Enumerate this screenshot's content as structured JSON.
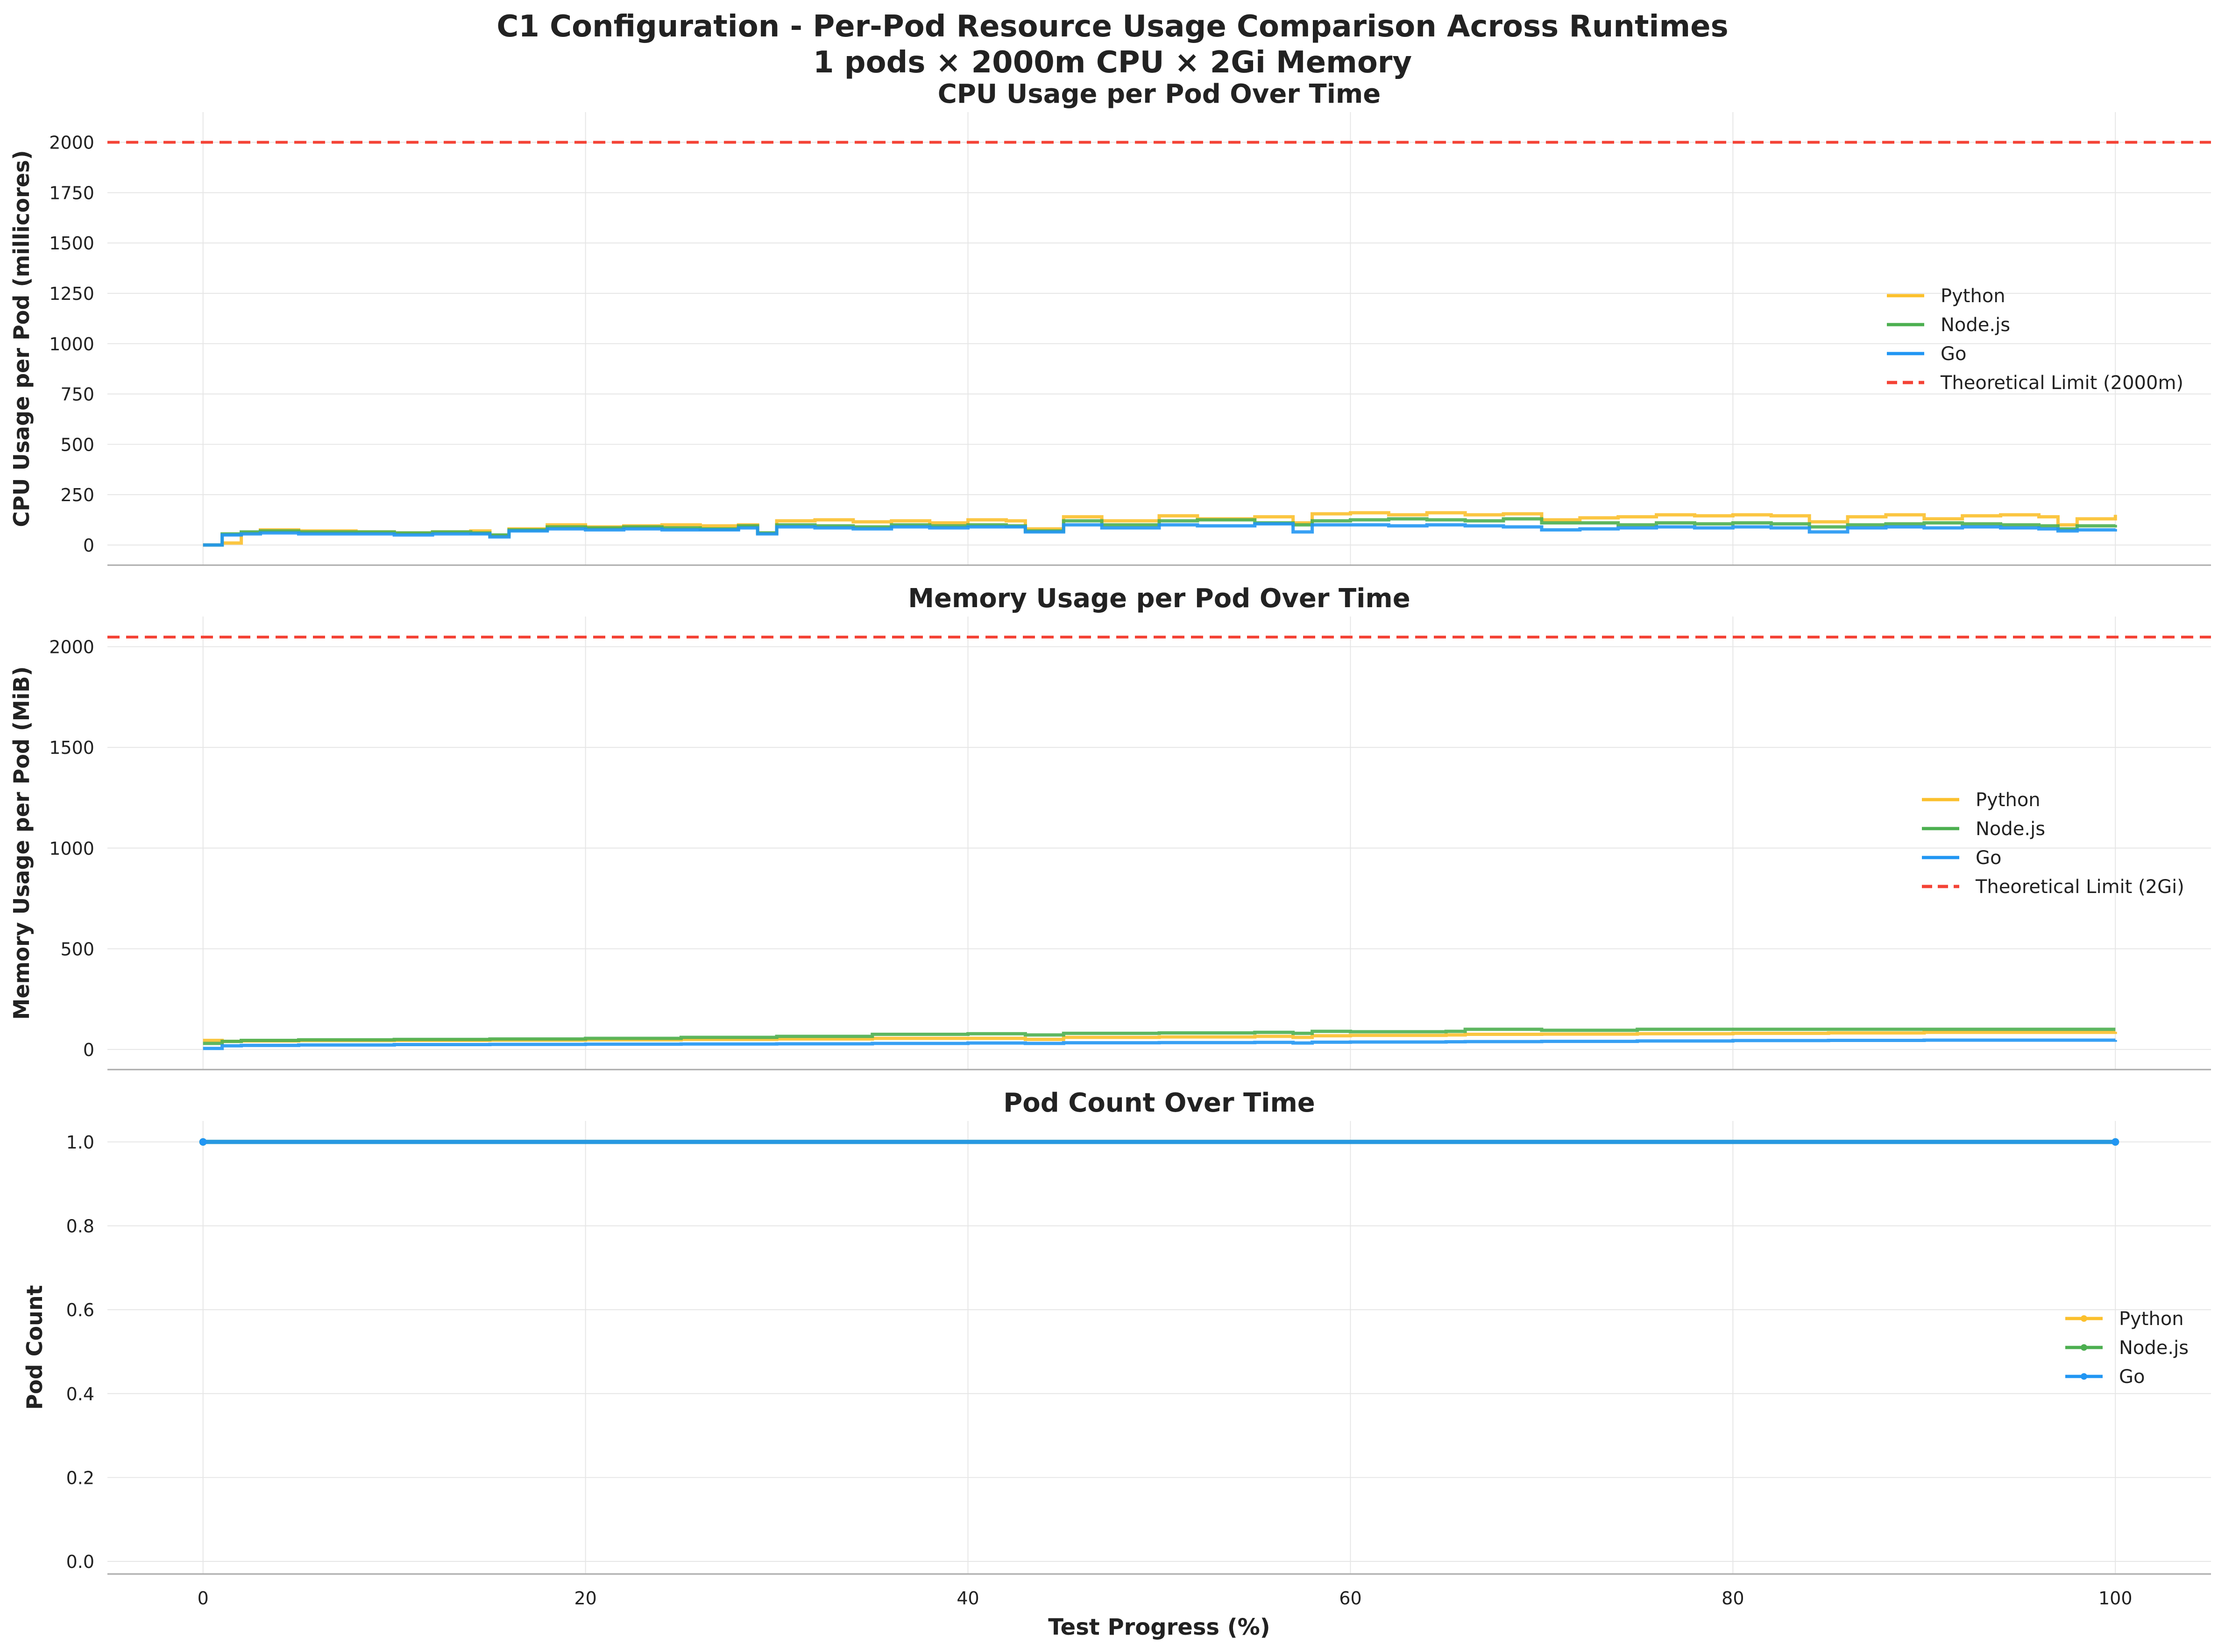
{
  "figure": {
    "title_line1": "C1 Configuration - Per-Pod Resource Usage Comparison Across Runtimes",
    "title_line2": "1 pods × 2000m CPU × 2Gi Memory",
    "xlabel": "Test Progress (%)"
  },
  "colors": {
    "Python": "#FBC02D",
    "Node.js": "#4CAF50",
    "Go": "#2196F3",
    "limit": "#F44336",
    "grid": "#E6E6E6",
    "axis": "#AAAAAA"
  },
  "chart_data": [
    {
      "type": "line",
      "id": "cpu",
      "title": "CPU Usage per Pod Over Time",
      "ylabel": "CPU Usage per Pod (millicores)",
      "xlim": [
        -5,
        105
      ],
      "ylim": [
        -100,
        2150
      ],
      "xticks": [
        0,
        20,
        40,
        60,
        80,
        100
      ],
      "yticks": [
        0,
        250,
        500,
        750,
        1000,
        1250,
        1500,
        1750,
        2000
      ],
      "grid": true,
      "legend": "right",
      "reference_line": {
        "y": 2000,
        "label": "Theoretical Limit (2000m)"
      },
      "x": [
        0,
        1,
        2,
        3,
        5,
        8,
        10,
        12,
        14,
        15,
        16,
        18,
        20,
        22,
        24,
        26,
        28,
        29,
        30,
        32,
        34,
        36,
        38,
        40,
        42,
        43,
        45,
        47,
        50,
        52,
        55,
        57,
        58,
        60,
        62,
        64,
        66,
        68,
        70,
        72,
        74,
        76,
        78,
        80,
        82,
        84,
        86,
        88,
        90,
        92,
        94,
        96,
        97,
        98,
        100
      ],
      "series": [
        {
          "name": "Python",
          "values": [
            0,
            10,
            60,
            75,
            70,
            65,
            60,
            65,
            70,
            45,
            80,
            100,
            90,
            95,
            100,
            95,
            100,
            60,
            120,
            125,
            115,
            120,
            110,
            125,
            120,
            80,
            140,
            120,
            145,
            130,
            140,
            110,
            155,
            160,
            150,
            160,
            150,
            155,
            125,
            135,
            140,
            150,
            145,
            150,
            145,
            115,
            140,
            150,
            130,
            145,
            150,
            140,
            100,
            130,
            150
          ]
        },
        {
          "name": "Node.js",
          "values": [
            0,
            55,
            65,
            70,
            65,
            65,
            60,
            65,
            60,
            50,
            75,
            90,
            85,
            90,
            85,
            80,
            95,
            60,
            100,
            95,
            90,
            100,
            95,
            100,
            95,
            70,
            120,
            100,
            120,
            125,
            110,
            100,
            120,
            125,
            130,
            125,
            120,
            130,
            110,
            110,
            100,
            110,
            105,
            110,
            105,
            90,
            100,
            105,
            110,
            105,
            100,
            95,
            80,
            95,
            100
          ]
        },
        {
          "name": "Go",
          "values": [
            0,
            50,
            55,
            60,
            55,
            55,
            50,
            55,
            55,
            40,
            70,
            80,
            75,
            80,
            75,
            75,
            85,
            55,
            90,
            85,
            80,
            90,
            85,
            90,
            90,
            65,
            100,
            85,
            100,
            95,
            105,
            65,
            100,
            100,
            95,
            100,
            95,
            90,
            75,
            80,
            85,
            90,
            85,
            90,
            85,
            65,
            85,
            90,
            85,
            90,
            85,
            80,
            70,
            75,
            80
          ]
        }
      ]
    },
    {
      "type": "line",
      "id": "memory",
      "title": "Memory Usage per Pod Over Time",
      "ylabel": "Memory Usage per Pod (MiB)",
      "xlim": [
        -5,
        105
      ],
      "ylim": [
        -100,
        2150
      ],
      "xticks": [
        0,
        20,
        40,
        60,
        80,
        100
      ],
      "yticks": [
        0,
        500,
        1000,
        1500,
        2000
      ],
      "grid": true,
      "legend": "right",
      "reference_line": {
        "y": 2048,
        "label": "Theoretical Limit (2Gi)"
      },
      "x": [
        0,
        1,
        2,
        5,
        10,
        15,
        20,
        25,
        30,
        35,
        40,
        43,
        45,
        50,
        55,
        57,
        58,
        60,
        65,
        66,
        70,
        75,
        80,
        85,
        90,
        95,
        100
      ],
      "series": [
        {
          "name": "Python",
          "values": [
            45,
            40,
            42,
            44,
            45,
            46,
            48,
            50,
            52,
            55,
            55,
            50,
            60,
            62,
            65,
            60,
            68,
            70,
            72,
            75,
            76,
            78,
            80,
            82,
            85,
            85,
            88
          ]
        },
        {
          "name": "Node.js",
          "values": [
            30,
            40,
            45,
            48,
            50,
            52,
            55,
            60,
            65,
            75,
            78,
            72,
            80,
            82,
            85,
            80,
            90,
            88,
            90,
            100,
            95,
            100,
            100,
            100,
            100,
            100,
            100
          ]
        },
        {
          "name": "Go",
          "values": [
            5,
            18,
            20,
            22,
            24,
            25,
            26,
            27,
            28,
            30,
            32,
            30,
            33,
            34,
            35,
            32,
            36,
            37,
            38,
            39,
            40,
            42,
            44,
            45,
            46,
            46,
            47
          ]
        }
      ]
    },
    {
      "type": "line",
      "id": "pods",
      "title": "Pod Count Over Time",
      "ylabel": "Pod Count",
      "xlim": [
        -5,
        105
      ],
      "ylim": [
        -0.03,
        1.05
      ],
      "xticks": [
        0,
        20,
        40,
        60,
        80,
        100
      ],
      "yticks": [
        0.0,
        0.2,
        0.4,
        0.6,
        0.8,
        1.0
      ],
      "grid": true,
      "legend": "right",
      "x": [
        0,
        100
      ],
      "series": [
        {
          "name": "Python",
          "values": [
            1,
            1
          ]
        },
        {
          "name": "Node.js",
          "values": [
            1,
            1
          ]
        },
        {
          "name": "Go",
          "values": [
            1,
            1
          ]
        }
      ]
    }
  ]
}
